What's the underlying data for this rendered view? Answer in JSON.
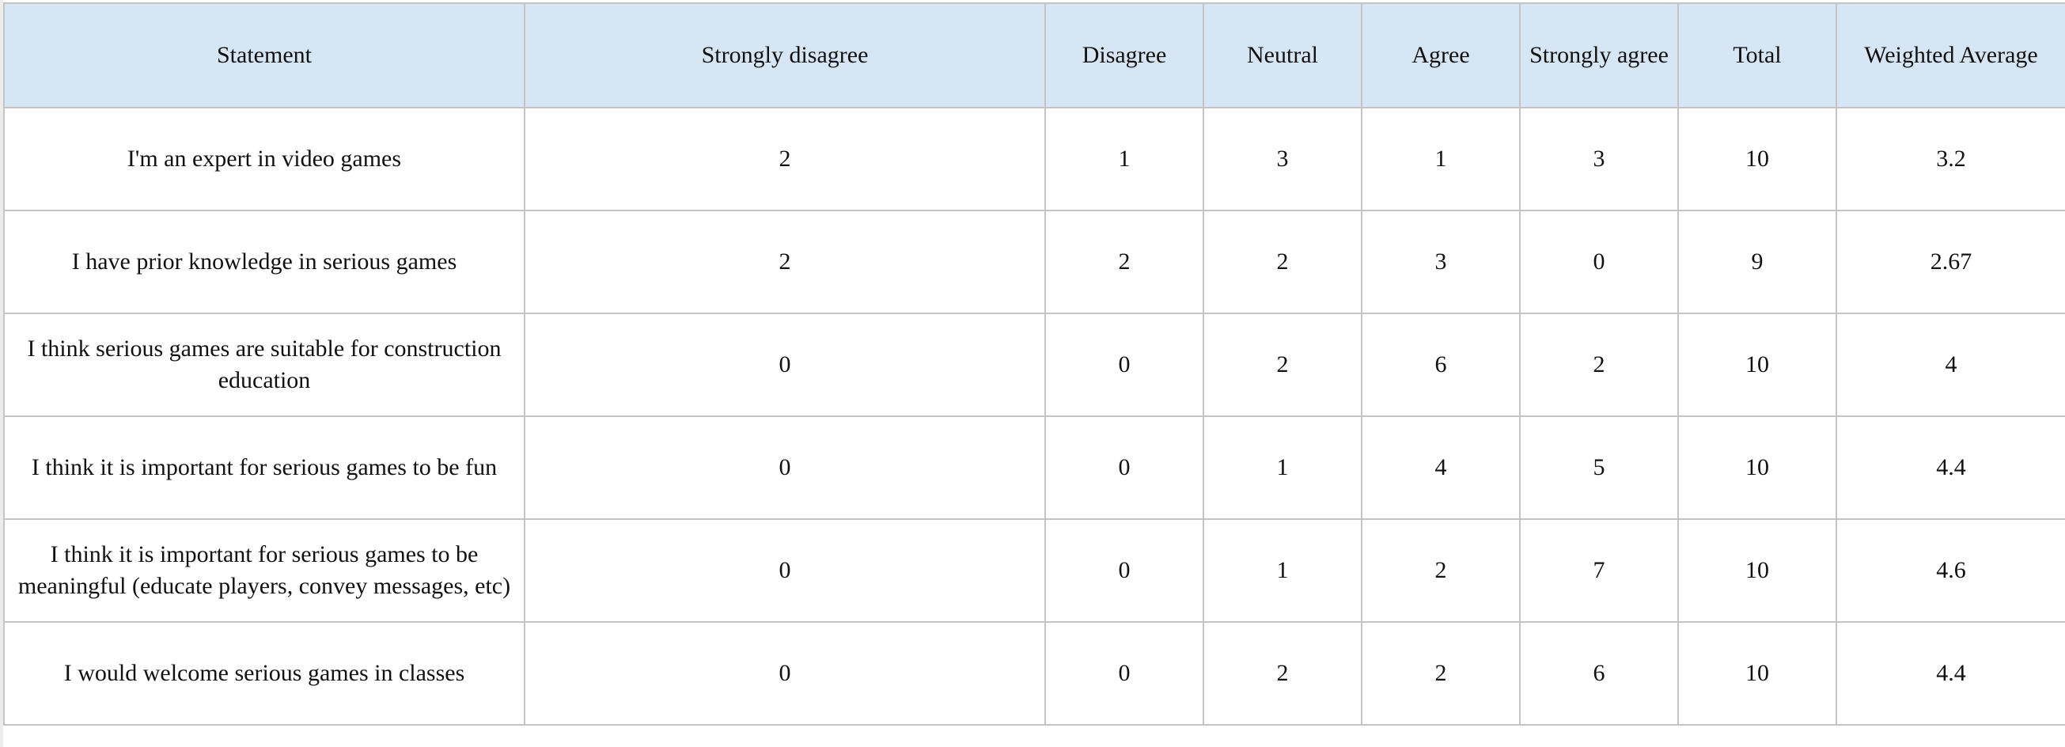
{
  "table": {
    "headers": [
      "Statement",
      "Strongly disagree",
      "Disagree",
      "Neutral",
      "Agree",
      "Strongly agree",
      "Total",
      "Weighted Average"
    ],
    "rows": [
      [
        "I'm an expert in video games",
        "2",
        "1",
        "3",
        "1",
        "3",
        "10",
        "3.2"
      ],
      [
        "I have prior knowledge in serious games",
        "2",
        "2",
        "2",
        "3",
        "0",
        "9",
        "2.67"
      ],
      [
        "I think serious games are suitable for construction education",
        "0",
        "0",
        "2",
        "6",
        "2",
        "10",
        "4"
      ],
      [
        "I think it is important for serious games to be fun",
        "0",
        "0",
        "1",
        "4",
        "5",
        "10",
        "4.4"
      ],
      [
        "I think it is important for serious games to be meaningful (educate players, convey messages, etc)",
        "0",
        "0",
        "1",
        "2",
        "7",
        "10",
        "4.6"
      ],
      [
        "I would welcome serious games in classes",
        "0",
        "0",
        "2",
        "2",
        "6",
        "10",
        "4.4"
      ]
    ]
  },
  "colors": {
    "header_background": "#d6e6f5",
    "grid_line": "#c4c4c4",
    "text": "#111111"
  }
}
